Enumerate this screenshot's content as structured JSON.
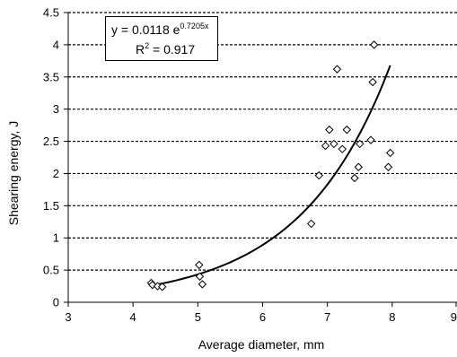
{
  "chart_data": {
    "type": "scatter",
    "title": "",
    "xlabel": "Average diameter, mm",
    "ylabel": "Shearing energy, J",
    "xlim": [
      3,
      9
    ],
    "ylim": [
      0,
      4.5
    ],
    "xticks": [
      "3",
      "4",
      "5",
      "6",
      "7",
      "8",
      "9"
    ],
    "yticks": [
      "0",
      "0.5",
      "1",
      "1.5",
      "2",
      "2.5",
      "3",
      "3.5",
      "4",
      "4.5"
    ],
    "grid": "horizontal dashed",
    "marker": "open diamond",
    "points": [
      {
        "x": 4.28,
        "y": 0.3
      },
      {
        "x": 4.3,
        "y": 0.27
      },
      {
        "x": 4.38,
        "y": 0.25
      },
      {
        "x": 4.45,
        "y": 0.24
      },
      {
        "x": 5.02,
        "y": 0.58
      },
      {
        "x": 5.03,
        "y": 0.4
      },
      {
        "x": 5.07,
        "y": 0.28
      },
      {
        "x": 6.75,
        "y": 1.22
      },
      {
        "x": 6.87,
        "y": 1.97
      },
      {
        "x": 6.97,
        "y": 2.43
      },
      {
        "x": 7.03,
        "y": 2.68
      },
      {
        "x": 7.1,
        "y": 2.46
      },
      {
        "x": 7.15,
        "y": 3.62
      },
      {
        "x": 7.23,
        "y": 2.38
      },
      {
        "x": 7.3,
        "y": 2.68
      },
      {
        "x": 7.42,
        "y": 1.93
      },
      {
        "x": 7.48,
        "y": 2.1
      },
      {
        "x": 7.5,
        "y": 2.46
      },
      {
        "x": 7.67,
        "y": 2.52
      },
      {
        "x": 7.7,
        "y": 3.42
      },
      {
        "x": 7.72,
        "y": 4.0
      },
      {
        "x": 7.94,
        "y": 2.1
      },
      {
        "x": 7.97,
        "y": 2.32
      }
    ],
    "trendline": {
      "type": "exponential",
      "a": 0.0118,
      "b": 0.7205,
      "x_range": [
        4.3,
        7.97
      ]
    },
    "annotation": {
      "eq_prefix": "y = 0.0118 e",
      "eq_exponent": "0.7205x",
      "r2_prefix": "R",
      "r2_exponent": "2",
      "r2_suffix": " = 0.917"
    }
  }
}
